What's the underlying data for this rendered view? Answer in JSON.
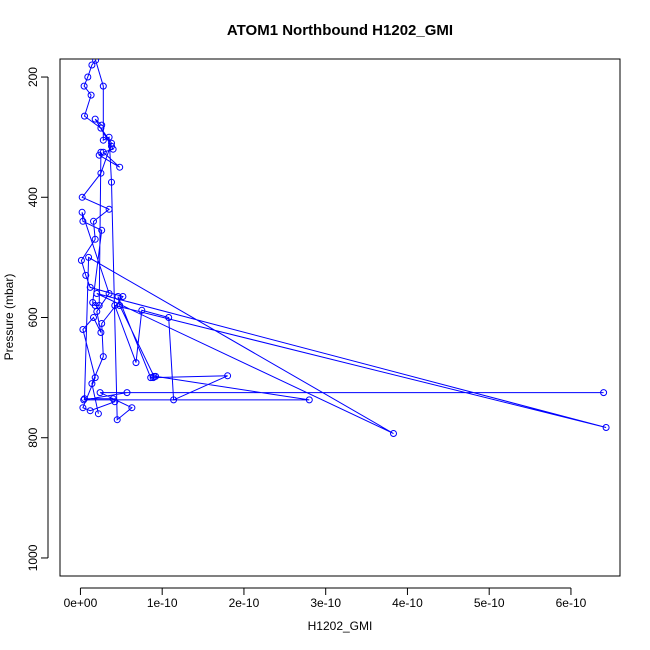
{
  "chart_data": {
    "type": "line",
    "title": "ATOM1 Northbound H1202_GMI",
    "xlabel": "H1202_GMI",
    "ylabel": "Pressure (mbar)",
    "xlim": [
      -2.5e-11,
      6.6e-10
    ],
    "ylim": [
      1030,
      170
    ],
    "y_reversed": true,
    "x_ticks": [
      0,
      1e-10,
      2e-10,
      3e-10,
      4e-10,
      5e-10,
      6e-10
    ],
    "x_tick_labels": [
      "0e+00",
      "1e-10",
      "2e-10",
      "3e-10",
      "4e-10",
      "5e-10",
      "6e-10"
    ],
    "y_ticks": [
      200,
      400,
      600,
      800,
      1000
    ],
    "y_tick_labels": [
      "200",
      "400",
      "600",
      "800",
      "1000"
    ],
    "color": "#0000ff",
    "marker": "open-circle",
    "grid": false,
    "legend": "none",
    "series": [
      {
        "points": [
          [
            2.2e-11,
            760
          ],
          [
            1.4e-11,
            710
          ],
          [
            2.8e-11,
            665
          ],
          [
            2.6e-11,
            610
          ],
          [
            5.2e-11,
            565
          ],
          [
            1.2e-11,
            550
          ],
          [
            6.5e-12,
            530
          ],
          [
            1.2e-12,
            505
          ],
          [
            1.8e-11,
            470
          ],
          [
            1.6e-11,
            440
          ],
          [
            3.5e-11,
            420
          ],
          [
            2.2e-12,
            400
          ],
          [
            2.5e-11,
            360
          ],
          [
            3.8e-11,
            310
          ],
          [
            2.5e-11,
            285
          ],
          [
            5e-12,
            265
          ],
          [
            1.3e-11,
            230
          ],
          [
            4.5e-12,
            215
          ],
          [
            9e-12,
            200
          ],
          [
            1.4e-11,
            180
          ],
          [
            1.85e-11,
            172
          ],
          [
            2.8e-11,
            215
          ],
          [
            2.8e-11,
            305
          ],
          [
            3.5e-11,
            300
          ],
          [
            3.8e-11,
            375
          ],
          [
            4.5e-11,
            770
          ],
          [
            6.3e-11,
            750
          ],
          [
            2.4e-11,
            725
          ],
          [
            6.4e-10,
            725
          ],
          [
            5.7e-11,
            725
          ],
          [
            4e-12,
            737
          ],
          [
            2.8e-10,
            737
          ],
          [
            9.2e-11,
            698
          ],
          [
            9e-11,
            698
          ],
          [
            4.8e-11,
            580
          ],
          [
            4.6e-11,
            565
          ],
          [
            8.6e-11,
            700
          ],
          [
            8.9e-11,
            700
          ],
          [
            1.8e-10,
            697
          ],
          [
            1.14e-10,
            737
          ],
          [
            1.08e-10,
            600
          ],
          [
            7.5e-11,
            588
          ],
          [
            6.8e-11,
            675
          ],
          [
            4.2e-11,
            580
          ],
          [
            6.43e-10,
            783
          ],
          [
            2e-11,
            560
          ],
          [
            3.83e-10,
            793
          ],
          [
            1e-11,
            500
          ],
          [
            5e-12,
            735
          ],
          [
            4e-11,
            735
          ],
          [
            4.2e-11,
            740
          ],
          [
            1.2e-11,
            755
          ],
          [
            3e-12,
            750
          ],
          [
            1.8e-11,
            700
          ],
          [
            3e-12,
            620
          ],
          [
            1.6e-11,
            600
          ],
          [
            2.5e-11,
            625
          ],
          [
            2e-11,
            590
          ],
          [
            3.5e-11,
            560
          ],
          [
            2e-12,
            425
          ],
          [
            3e-12,
            440
          ],
          [
            2.6e-11,
            455
          ],
          [
            1.5e-11,
            575
          ],
          [
            1.8e-11,
            580
          ],
          [
            2.3e-11,
            580
          ],
          [
            2.5e-11,
            325
          ],
          [
            2.3e-11,
            330
          ],
          [
            4.8e-11,
            350
          ],
          [
            2.8e-11,
            325
          ],
          [
            4e-11,
            320
          ],
          [
            3.8e-11,
            315
          ],
          [
            1.8e-11,
            270
          ],
          [
            2.6e-11,
            280
          ]
        ]
      }
    ]
  }
}
